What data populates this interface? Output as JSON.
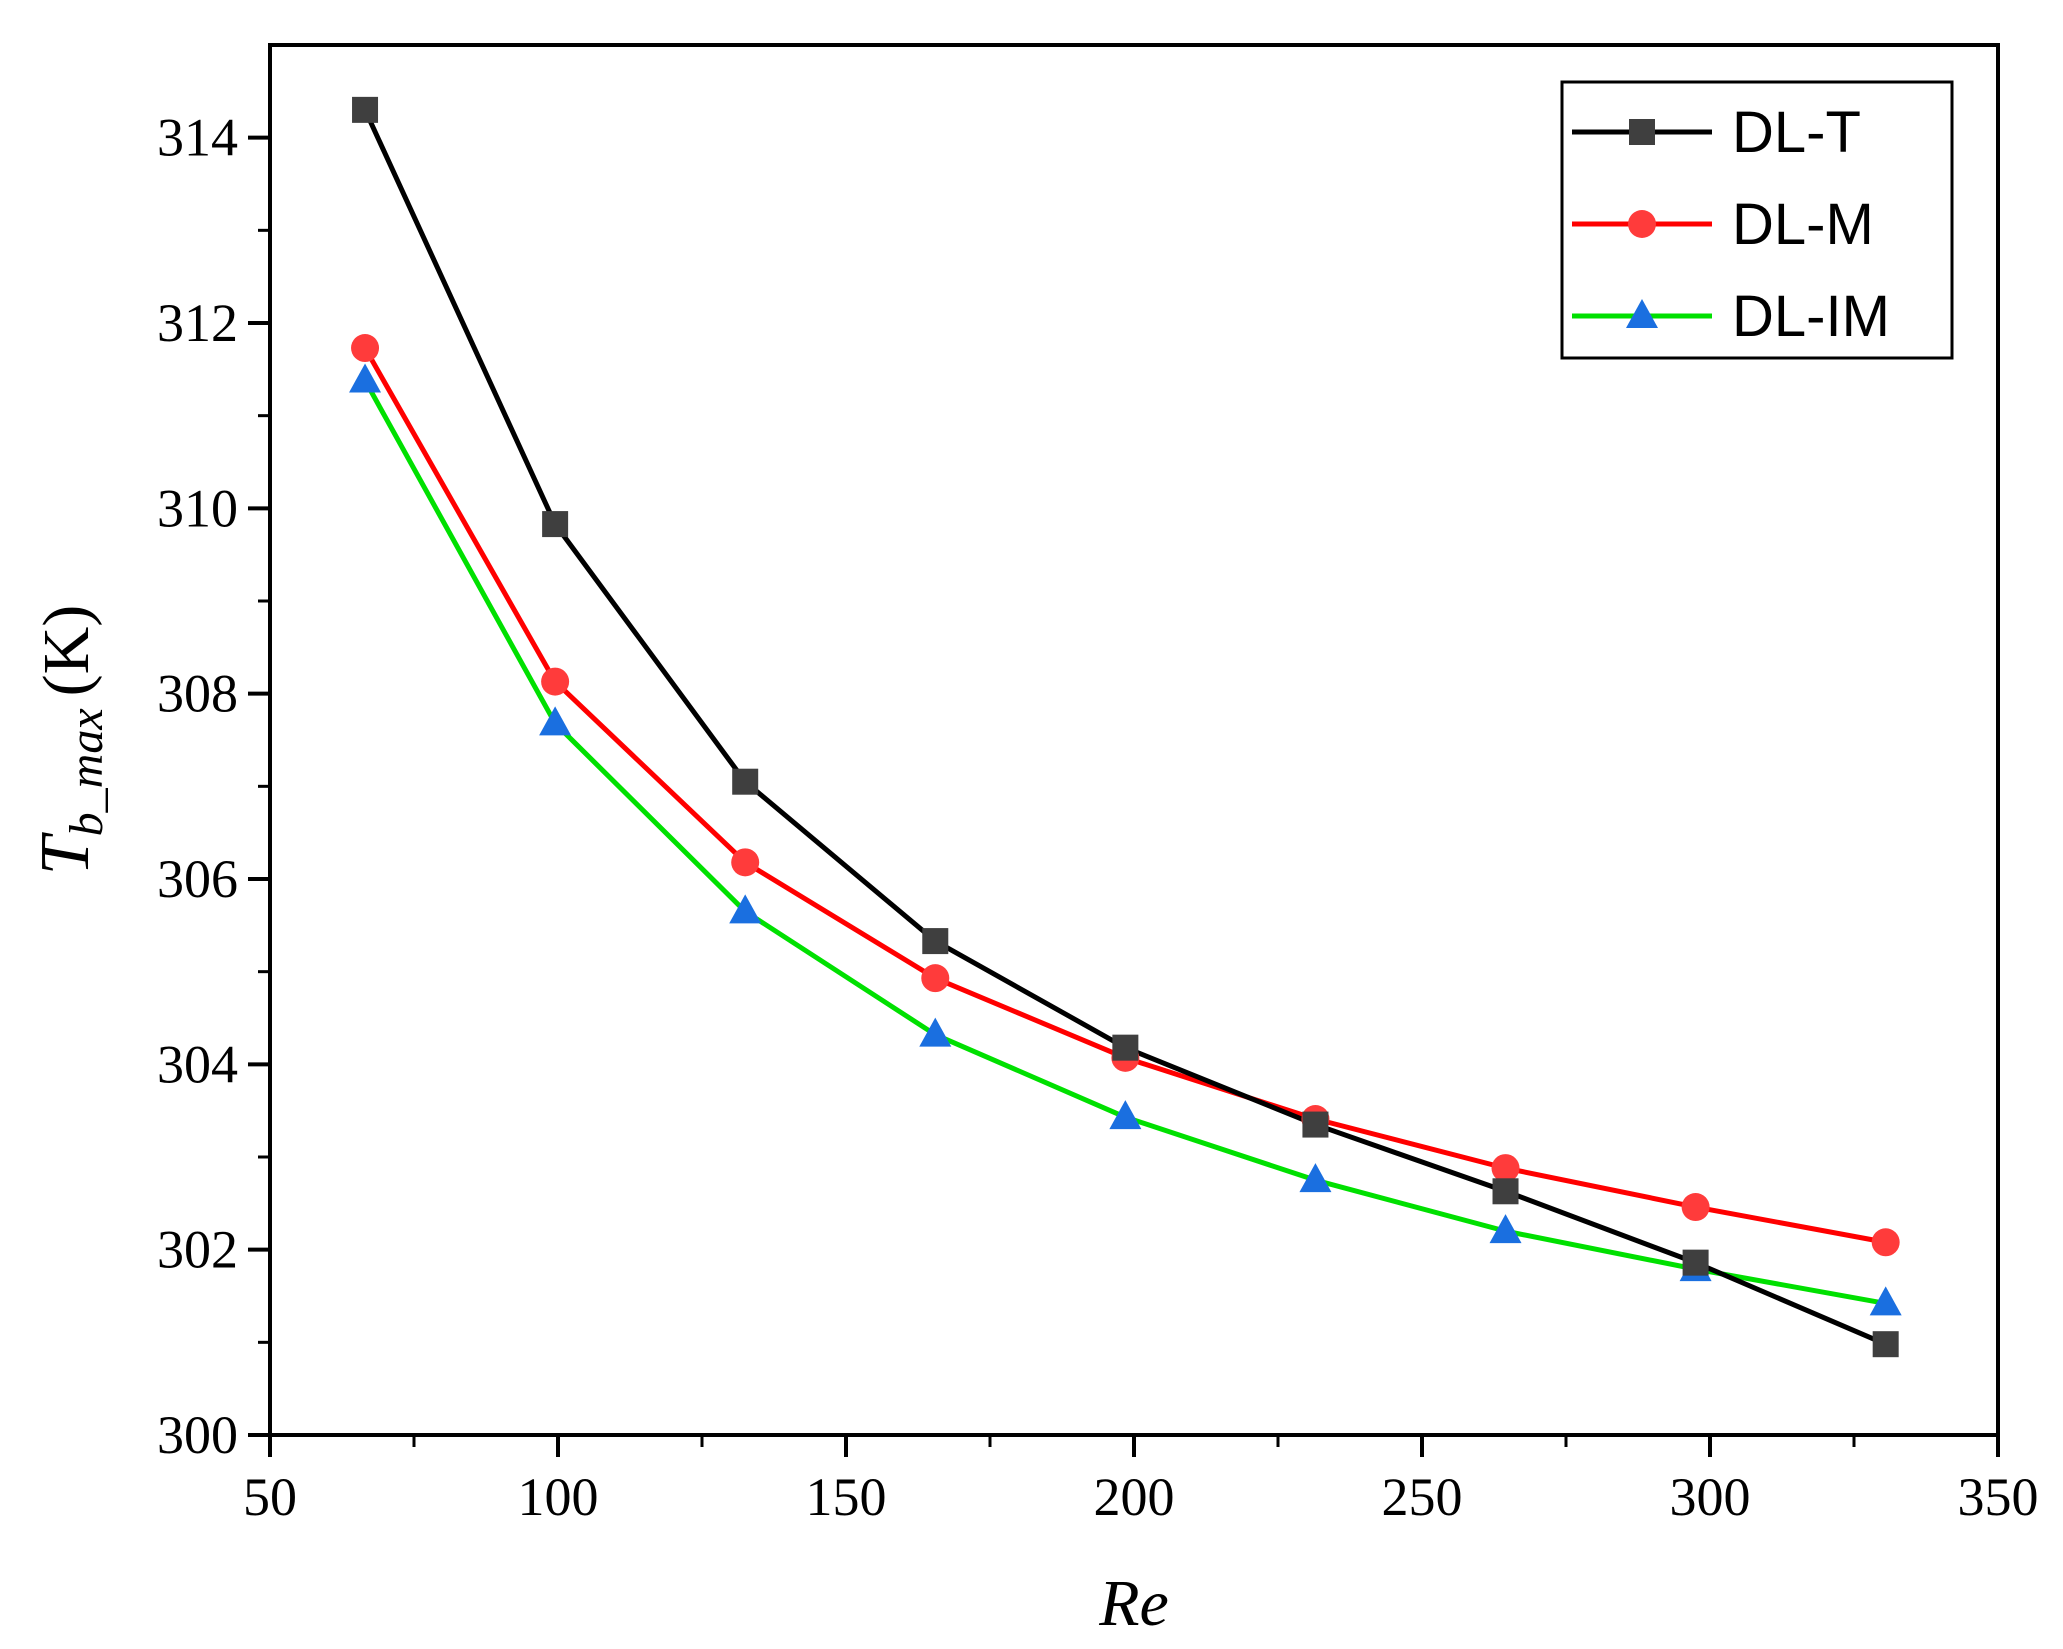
{
  "chart_data": {
    "type": "line",
    "title": "",
    "xlabel": "Re",
    "ylabel": {
      "base": "T",
      "subscript": "b_max",
      "unit": "(K)"
    },
    "xlim": [
      50,
      350
    ],
    "ylim": [
      300,
      315
    ],
    "x_ticks": [
      "50",
      "100",
      "150",
      "200",
      "250",
      "300",
      "350"
    ],
    "y_ticks": [
      "300",
      "302",
      "304",
      "306",
      "308",
      "310",
      "312",
      "314"
    ],
    "x": [
      66.5,
      99.5,
      132.5,
      165.5,
      198.5,
      231.5,
      264.5,
      297.5,
      330.5
    ],
    "series": [
      {
        "name": "DL-T",
        "color": "#000000",
        "marker": "square",
        "marker_color": "#3f3f3f",
        "values": [
          314.3,
          309.83,
          307.05,
          305.33,
          304.18,
          303.35,
          302.63,
          301.86,
          300.98
        ]
      },
      {
        "name": "DL-M",
        "color": "#ff0000",
        "marker": "circle",
        "marker_color": "#ff3b3b",
        "values": [
          311.73,
          308.13,
          306.18,
          304.93,
          304.07,
          303.41,
          302.88,
          302.46,
          302.08
        ]
      },
      {
        "name": "DL-IM",
        "color": "#00e000",
        "marker": "triangle",
        "marker_color": "#1a6fe0",
        "values": [
          311.38,
          307.68,
          305.65,
          304.32,
          303.43,
          302.75,
          302.2,
          301.79,
          301.42
        ]
      }
    ],
    "grid": false,
    "legend_position": "top-right"
  }
}
